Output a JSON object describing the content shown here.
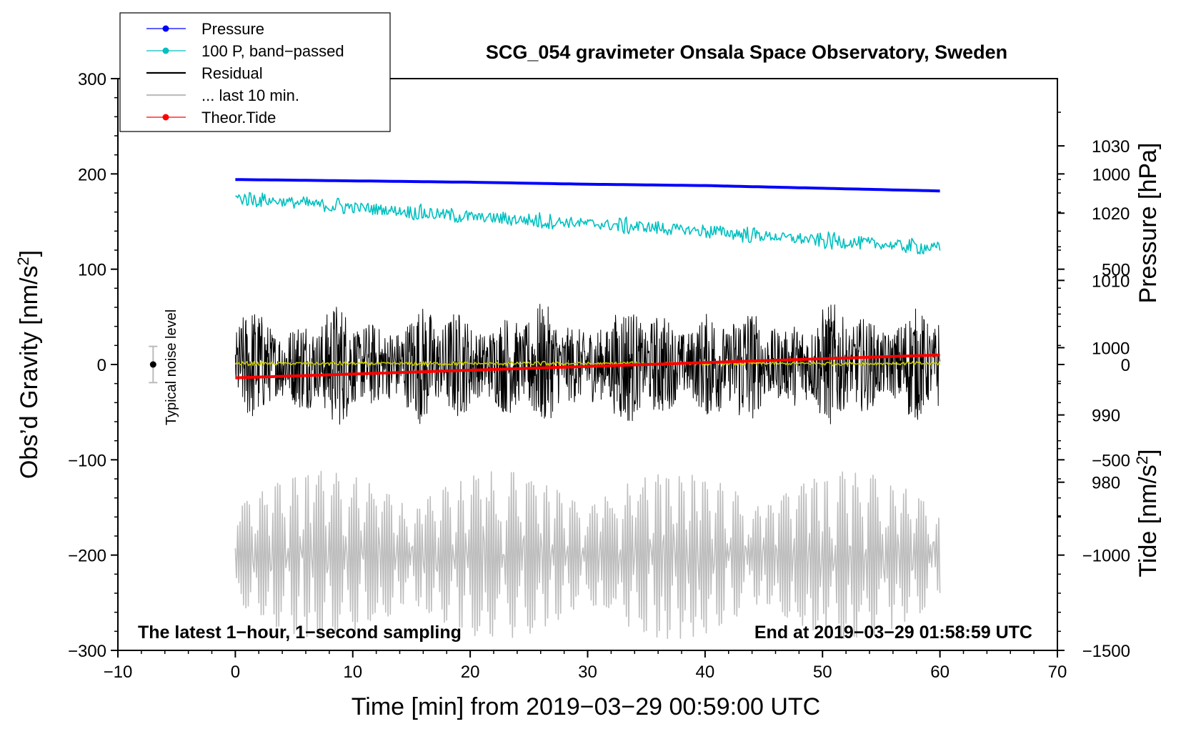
{
  "chart_data": {
    "type": "line",
    "title": "SCG_054 gravimeter Onsala Space Observatory, Sweden",
    "xlabel": "Time [min] from 2019−03−29 00:59:00 UTC",
    "ylabel_left": "Obs’d Gravity [nm/s",
    "ylabel_left_sup": "2",
    "ylabel_left_end": "]",
    "ylabel_right_top": "Pressure [hPa]",
    "ylabel_right_bottom": "Tide [nm/s",
    "ylabel_right_bottom_sup": "2",
    "ylabel_right_bottom_end": "]",
    "note_left": "The latest 1−hour, 1−second sampling",
    "note_right": "End at 2019−03−29 01:58:59 UTC",
    "noise_label": "Typical noise level",
    "xlim": [
      -10,
      70
    ],
    "ylim": [
      -300,
      300
    ],
    "pressure_lim": [
      955,
      1040
    ],
    "tide_lim": [
      -1500,
      1500
    ],
    "x_ticks": [
      "−10",
      "0",
      "10",
      "20",
      "30",
      "40",
      "50",
      "60",
      "70"
    ],
    "y_ticks": [
      "−300",
      "−200",
      "−100",
      "0",
      "100",
      "200",
      "300"
    ],
    "pressure_ticks": [
      "980",
      "990",
      "1000",
      "1010",
      "1020",
      "1030"
    ],
    "tide_ticks": [
      "−1500",
      "−1000",
      "−500",
      "0",
      "500",
      "1000"
    ],
    "legend": [
      {
        "label": "Pressure",
        "color": "#0000ff",
        "marker": true
      },
      {
        "label": "100 P, band−passed",
        "color": "#00c0c0",
        "marker": true
      },
      {
        "label": "Residual",
        "color": "#000000",
        "marker": false
      },
      {
        "label": "... last 10 min.",
        "color": "#bebebe",
        "marker": false
      },
      {
        "label": "Theor.Tide",
        "color": "#ff0000",
        "marker": true
      }
    ],
    "series": [
      {
        "name": "Pressure",
        "axis": "pressure",
        "color": "#0000ff",
        "x": [
          0,
          10,
          20,
          30,
          40,
          50,
          60
        ],
        "values": [
          1025.0,
          1024.8,
          1024.6,
          1024.3,
          1024.1,
          1023.7,
          1023.3
        ]
      },
      {
        "name": "100 P, band−passed",
        "axis": "gravity",
        "color": "#00c0c0",
        "x": [
          0,
          10,
          20,
          30,
          40,
          50,
          60
        ],
        "values": [
          175,
          165,
          155,
          148,
          140,
          130,
          122
        ],
        "noise_amplitude": 8
      },
      {
        "name": "Residual",
        "axis": "gravity",
        "color": "#000000",
        "x": [
          0,
          60
        ],
        "values": [
          0,
          0
        ],
        "noise_amplitude": 55
      },
      {
        "name": "Smoothed residual",
        "axis": "gravity",
        "color": "#c8c800",
        "x": [
          0,
          60
        ],
        "values": [
          1,
          1
        ],
        "noise_amplitude": 2
      },
      {
        "name": "... last 10 min.",
        "axis": "gravity",
        "color": "#bebebe",
        "x": [
          0,
          60
        ],
        "values": [
          -200,
          -200
        ],
        "oscillation_amplitude": 80
      },
      {
        "name": "Theor.Tide",
        "axis": "tide",
        "color": "#ff0000",
        "x": [
          0,
          10,
          20,
          30,
          40,
          50,
          60
        ],
        "values": [
          -70,
          -50,
          -30,
          -10,
          10,
          30,
          50
        ]
      }
    ],
    "noise_level": {
      "x": -7,
      "center": 0,
      "half_range": 19
    }
  }
}
